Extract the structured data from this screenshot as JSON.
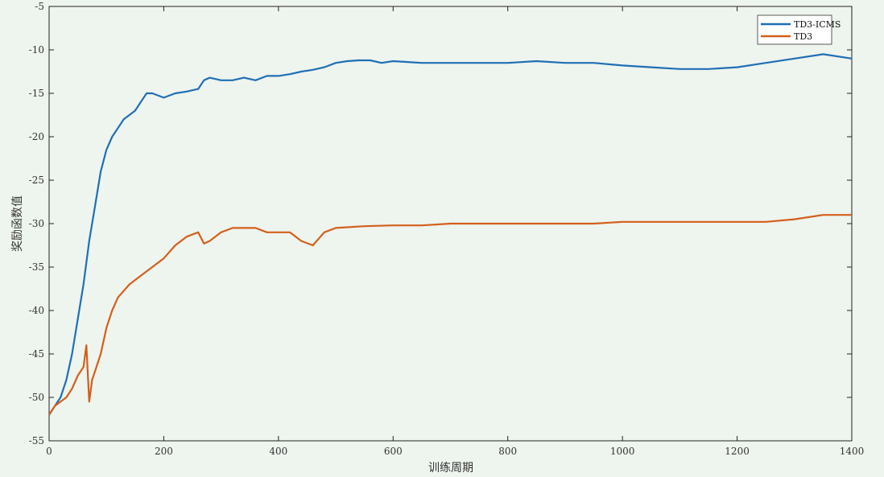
{
  "chart_data": {
    "type": "line",
    "title": "",
    "xlabel": "训练周期",
    "ylabel": "奖励函数值",
    "xlim": [
      0,
      1400
    ],
    "ylim": [
      -55,
      -5
    ],
    "xticks": [
      0,
      200,
      400,
      600,
      800,
      1000,
      1200,
      1400
    ],
    "yticks": [
      -55,
      -50,
      -45,
      -40,
      -35,
      -30,
      -25,
      -20,
      -15,
      -10,
      -5
    ],
    "grid": false,
    "legend_position": "top-right",
    "series": [
      {
        "name": "TD3-ICMS",
        "color": "#1f6fb5",
        "x": [
          0,
          10,
          20,
          30,
          40,
          50,
          60,
          70,
          80,
          90,
          100,
          110,
          120,
          130,
          140,
          150,
          160,
          170,
          180,
          200,
          220,
          240,
          260,
          270,
          280,
          300,
          320,
          340,
          360,
          380,
          400,
          420,
          440,
          460,
          480,
          500,
          520,
          540,
          560,
          580,
          600,
          650,
          700,
          750,
          800,
          850,
          900,
          950,
          1000,
          1050,
          1100,
          1150,
          1200,
          1250,
          1300,
          1350,
          1400
        ],
        "values": [
          -52,
          -51,
          -50,
          -48,
          -45,
          -41,
          -37,
          -32,
          -28,
          -24,
          -21.5,
          -20,
          -19,
          -18,
          -17.5,
          -17,
          -16,
          -15,
          -15,
          -15.5,
          -15,
          -14.8,
          -14.5,
          -13.5,
          -13.2,
          -13.5,
          -13.5,
          -13.2,
          -13.5,
          -13,
          -13,
          -12.8,
          -12.5,
          -12.3,
          -12,
          -11.5,
          -11.3,
          -11.2,
          -11.2,
          -11.5,
          -11.3,
          -11.5,
          -11.5,
          -11.5,
          -11.5,
          -11.3,
          -11.5,
          -11.5,
          -11.8,
          -12,
          -12.2,
          -12.2,
          -12,
          -11.5,
          -11,
          -10.5,
          -11
        ]
      },
      {
        "name": "TD3",
        "color": "#d35f1c",
        "x": [
          0,
          10,
          20,
          30,
          40,
          50,
          60,
          65,
          70,
          75,
          80,
          90,
          100,
          110,
          120,
          140,
          160,
          180,
          200,
          220,
          240,
          260,
          270,
          280,
          300,
          320,
          340,
          360,
          380,
          400,
          420,
          440,
          460,
          480,
          500,
          550,
          600,
          650,
          700,
          750,
          800,
          850,
          900,
          950,
          1000,
          1050,
          1100,
          1150,
          1200,
          1250,
          1300,
          1350,
          1400
        ],
        "values": [
          -52,
          -51,
          -50.5,
          -50,
          -49,
          -47.5,
          -46.5,
          -44,
          -50.5,
          -48,
          -47,
          -45,
          -42,
          -40,
          -38.5,
          -37,
          -36,
          -35,
          -34,
          -32.5,
          -31.5,
          -31,
          -32.3,
          -32,
          -31,
          -30.5,
          -30.5,
          -30.5,
          -31,
          -31,
          -31,
          -32,
          -32.5,
          -31,
          -30.5,
          -30.3,
          -30.2,
          -30.2,
          -30,
          -30,
          -30,
          -30,
          -30,
          -30,
          -29.8,
          -29.8,
          -29.8,
          -29.8,
          -29.8,
          -29.8,
          -29.5,
          -29,
          -29
        ]
      }
    ]
  }
}
